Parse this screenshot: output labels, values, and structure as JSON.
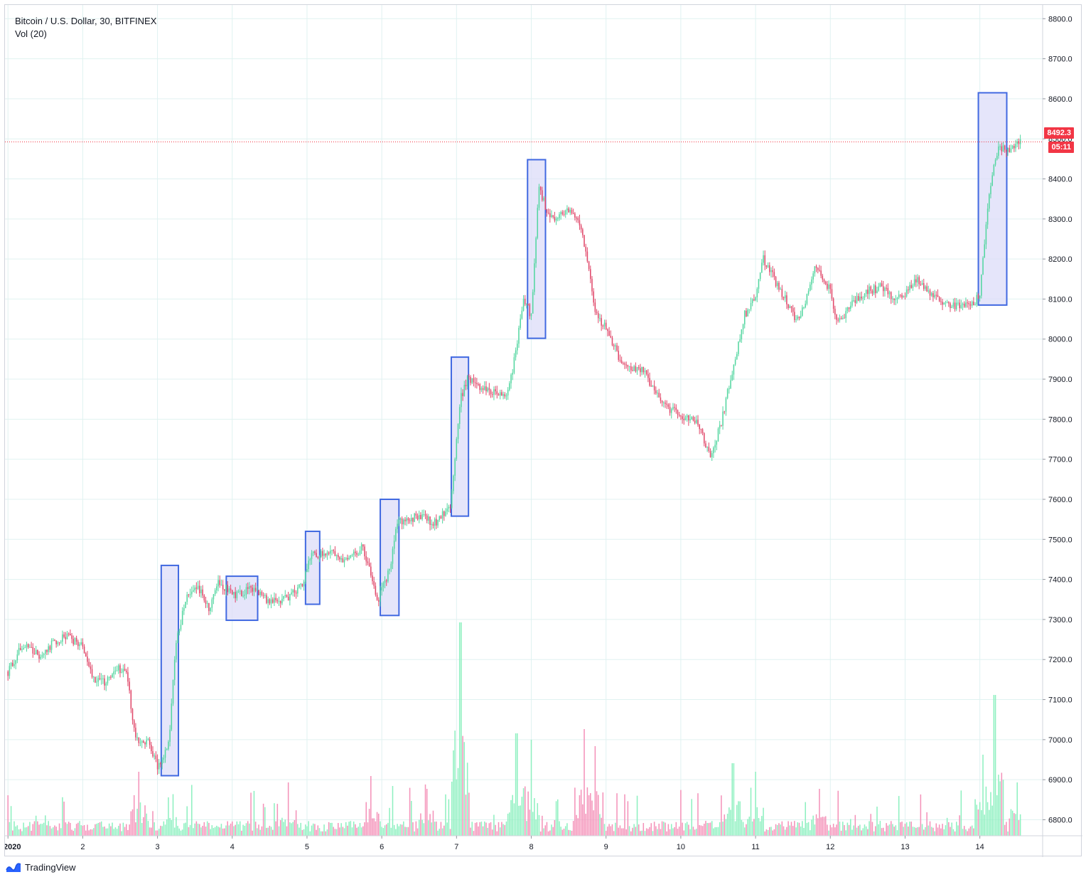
{
  "header": {
    "title": "Bitcoin / U.S. Dollar, 30, BITFINEX",
    "indicator": "Vol (20)"
  },
  "footer": {
    "brand": "TradingView"
  },
  "colors": {
    "up": "#26a69a",
    "up_candle": "#53d6a0",
    "down": "#ef5350",
    "down_candle": "#e0486a",
    "vol_up": "#8ef0c0",
    "vol_down": "#f492b9",
    "grid": "#e0f2f1",
    "highlight_fill": "#dcdcf8",
    "highlight_stroke": "#4169e1",
    "last_price": "#f23645"
  },
  "price_axis": {
    "ticks": [
      "8800.0",
      "8700.0",
      "8600.0",
      "8500.0",
      "8400.0",
      "8300.0",
      "8200.0",
      "8100.0",
      "8000.0",
      "7900.0",
      "7800.0",
      "7700.0",
      "7600.0",
      "7500.0",
      "7400.0",
      "7300.0",
      "7200.0",
      "7100.0",
      "7000.0",
      "6900.0",
      "6800.0"
    ],
    "last_price": "8492.3",
    "countdown": "05:11"
  },
  "time_axis": {
    "labels": [
      "2020",
      "2",
      "3",
      "4",
      "5",
      "6",
      "7",
      "8",
      "9",
      "10",
      "11",
      "12",
      "13",
      "14"
    ]
  },
  "chart_data": {
    "type": "candlestick",
    "title": "Bitcoin / U.S. Dollar, 30, BITFINEX",
    "interval": "30",
    "ylim": [
      6760,
      8820
    ],
    "last_price": 8492.3,
    "x_unit": "days of January 2020",
    "xlim": [
      0.96,
      14.84
    ],
    "close_path": [
      [
        1.0,
        7170
      ],
      [
        1.2,
        7240
      ],
      [
        1.4,
        7210
      ],
      [
        1.6,
        7240
      ],
      [
        1.8,
        7260
      ],
      [
        2.0,
        7230
      ],
      [
        2.15,
        7150
      ],
      [
        2.3,
        7140
      ],
      [
        2.45,
        7180
      ],
      [
        2.6,
        7160
      ],
      [
        2.7,
        7000
      ],
      [
        2.9,
        6990
      ],
      [
        3.0,
        6930
      ],
      [
        3.15,
        6990
      ],
      [
        3.25,
        7250
      ],
      [
        3.4,
        7360
      ],
      [
        3.55,
        7380
      ],
      [
        3.7,
        7320
      ],
      [
        3.8,
        7400
      ],
      [
        4.0,
        7360
      ],
      [
        4.3,
        7380
      ],
      [
        4.5,
        7340
      ],
      [
        4.7,
        7350
      ],
      [
        4.92,
        7380
      ],
      [
        5.05,
        7460
      ],
      [
        5.3,
        7470
      ],
      [
        5.5,
        7440
      ],
      [
        5.75,
        7480
      ],
      [
        5.95,
        7350
      ],
      [
        6.1,
        7420
      ],
      [
        6.2,
        7540
      ],
      [
        6.5,
        7560
      ],
      [
        6.7,
        7540
      ],
      [
        6.92,
        7580
      ],
      [
        7.05,
        7850
      ],
      [
        7.15,
        7900
      ],
      [
        7.35,
        7880
      ],
      [
        7.65,
        7850
      ],
      [
        7.75,
        7920
      ],
      [
        7.9,
        8100
      ],
      [
        8.0,
        8060
      ],
      [
        8.1,
        8380
      ],
      [
        8.25,
        8300
      ],
      [
        8.5,
        8320
      ],
      [
        8.65,
        8280
      ],
      [
        8.75,
        8200
      ],
      [
        8.85,
        8060
      ],
      [
        9.0,
        8030
      ],
      [
        9.2,
        7940
      ],
      [
        9.5,
        7920
      ],
      [
        9.65,
        7870
      ],
      [
        9.8,
        7830
      ],
      [
        10.0,
        7810
      ],
      [
        10.2,
        7800
      ],
      [
        10.4,
        7700
      ],
      [
        10.55,
        7800
      ],
      [
        10.7,
        7930
      ],
      [
        10.85,
        8060
      ],
      [
        11.0,
        8100
      ],
      [
        11.1,
        8200
      ],
      [
        11.25,
        8150
      ],
      [
        11.4,
        8100
      ],
      [
        11.55,
        8040
      ],
      [
        11.7,
        8110
      ],
      [
        11.8,
        8180
      ],
      [
        12.0,
        8120
      ],
      [
        12.1,
        8040
      ],
      [
        12.3,
        8090
      ],
      [
        12.5,
        8120
      ],
      [
        12.7,
        8130
      ],
      [
        12.85,
        8100
      ],
      [
        13.0,
        8110
      ],
      [
        13.15,
        8150
      ],
      [
        13.3,
        8120
      ],
      [
        13.5,
        8090
      ],
      [
        13.7,
        8080
      ],
      [
        13.9,
        8090
      ],
      [
        14.0,
        8110
      ],
      [
        14.1,
        8320
      ],
      [
        14.15,
        8400
      ],
      [
        14.25,
        8480
      ],
      [
        14.4,
        8470
      ],
      [
        14.55,
        8492.3
      ]
    ],
    "volume_relative_peaks": [
      [
        2.75,
        0.3
      ],
      [
        3.15,
        0.18
      ],
      [
        4.75,
        0.25
      ],
      [
        5.85,
        0.28
      ],
      [
        6.6,
        0.22
      ],
      [
        7.05,
        1.0
      ],
      [
        7.8,
        0.48
      ],
      [
        8.0,
        0.45
      ],
      [
        8.7,
        0.5
      ],
      [
        8.85,
        0.42
      ],
      [
        10.7,
        0.34
      ],
      [
        11.0,
        0.3
      ],
      [
        11.85,
        0.22
      ],
      [
        14.05,
        0.38
      ],
      [
        14.2,
        0.66
      ],
      [
        14.5,
        0.25
      ]
    ],
    "highlight_boxes": [
      {
        "x": [
          3.05,
          3.28
        ],
        "y": [
          6910,
          7435
        ]
      },
      {
        "x": [
          3.92,
          4.34
        ],
        "y": [
          7298,
          7408
        ]
      },
      {
        "x": [
          4.98,
          5.17
        ],
        "y": [
          7338,
          7520
        ]
      },
      {
        "x": [
          5.98,
          6.23
        ],
        "y": [
          7310,
          7600
        ]
      },
      {
        "x": [
          6.93,
          7.16
        ],
        "y": [
          7558,
          7955
        ]
      },
      {
        "x": [
          7.95,
          8.19
        ],
        "y": [
          8002,
          8448
        ]
      },
      {
        "x": [
          13.98,
          14.36
        ],
        "y": [
          8085,
          8615
        ]
      }
    ]
  }
}
